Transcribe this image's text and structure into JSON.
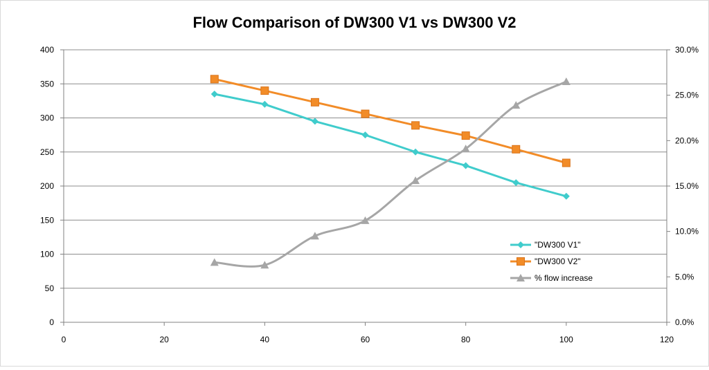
{
  "chart_data": {
    "type": "line",
    "title": "Flow Comparison of DW300 V1 vs DW300 V2",
    "xlabel": "",
    "ylabel": "",
    "y2label": "",
    "xlim": [
      0,
      120
    ],
    "ylim": [
      0,
      400
    ],
    "y2lim": [
      0,
      0.3
    ],
    "x_ticks": [
      "0",
      "20",
      "40",
      "60",
      "80",
      "100",
      "120"
    ],
    "y_ticks": [
      "0",
      "50",
      "100",
      "150",
      "200",
      "250",
      "300",
      "350",
      "400"
    ],
    "y2_ticks": [
      "0.0%",
      "5.0%",
      "10.0%",
      "15.0%",
      "20.0%",
      "25.0%",
      "30.0%"
    ],
    "grid": true,
    "legend_position": "right",
    "x": [
      30,
      40,
      50,
      60,
      70,
      80,
      90,
      100
    ],
    "series": [
      {
        "name": "\"DW300 V1\"",
        "axis": "left",
        "color": "#40CCCC",
        "marker": "diamond",
        "smooth": false,
        "values": [
          335,
          320,
          295,
          275,
          250,
          230,
          205,
          185
        ]
      },
      {
        "name": "\"DW300 V2\"",
        "axis": "left",
        "color": "#F28C28",
        "marker": "square",
        "smooth": false,
        "values": [
          357,
          340,
          323,
          306,
          289,
          274,
          254,
          234
        ]
      },
      {
        "name": "% flow increase",
        "axis": "right",
        "color": "#A6A6A6",
        "marker": "triangle",
        "smooth": true,
        "values": [
          0.066,
          0.063,
          0.095,
          0.112,
          0.156,
          0.191,
          0.239,
          0.265
        ]
      }
    ]
  }
}
